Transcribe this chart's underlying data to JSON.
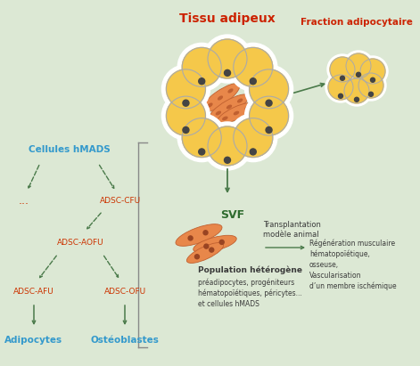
{
  "background_color": "#dce8d4",
  "title": "Tissu adipeux",
  "title_color": "#cc2200",
  "fraction_label": "Fraction adipocytaire",
  "fraction_color": "#cc2200",
  "svf_label": "SVF",
  "svf_color": "#2e6b2e",
  "arrow_color": "#4a7a4a",
  "red_color": "#cc3300",
  "blue_color": "#3399cc",
  "dots_color": "#cc3300",
  "pop_hetero_bold": "Population hétérogène",
  "pop_hetero_detail": "préadipocytes, progéniteurs\nhématopoïétiques, péricytes...\net cellules hMADS",
  "transplant_label": "Transplantation\nmodèle animal",
  "regen_label": "Régénération musculaire\nhématopoïétique,\nosseuse,\nVascularisation\nd’un membre ischémique",
  "text_color_dark": "#3a3a3a",
  "orange_fill": "#e8874a",
  "yellow_fill": "#f5c84a",
  "cell_white": "#ffffff",
  "cell_outline": "#aaaaaa",
  "fiber_outline": "#c06030",
  "dot_color": "#444444",
  "bracket_color": "#888888",
  "figsize": [
    4.71,
    4.11
  ],
  "dpi": 100
}
